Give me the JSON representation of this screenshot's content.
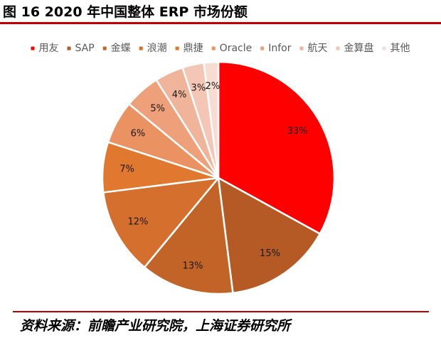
{
  "figure": {
    "title": "图 16 2020 年中国整体 ERP 市场份额",
    "source": "资料来源：前瞻产业研究院，上海证券研究所"
  },
  "chart_data": {
    "type": "pie",
    "title": "",
    "legend_position": "top",
    "categories": [
      "用友",
      "SAP",
      "金蝶",
      "浪潮",
      "鼎捷",
      "Oracle",
      "Infor",
      "航天",
      "金算盘",
      "其他"
    ],
    "values": [
      33,
      15,
      13,
      12,
      7,
      6,
      5,
      4,
      3,
      2
    ],
    "value_labels": [
      "33%",
      "15%",
      "13%",
      "12%",
      "7%",
      "6%",
      "5%",
      "4%",
      "3%",
      "2%"
    ],
    "colors": [
      "#ff0000",
      "#b55a24",
      "#c26327",
      "#d46f2d",
      "#e0782f",
      "#ea9262",
      "#eda07a",
      "#f0b49b",
      "#f3c6b5",
      "#f7dcd2"
    ]
  }
}
